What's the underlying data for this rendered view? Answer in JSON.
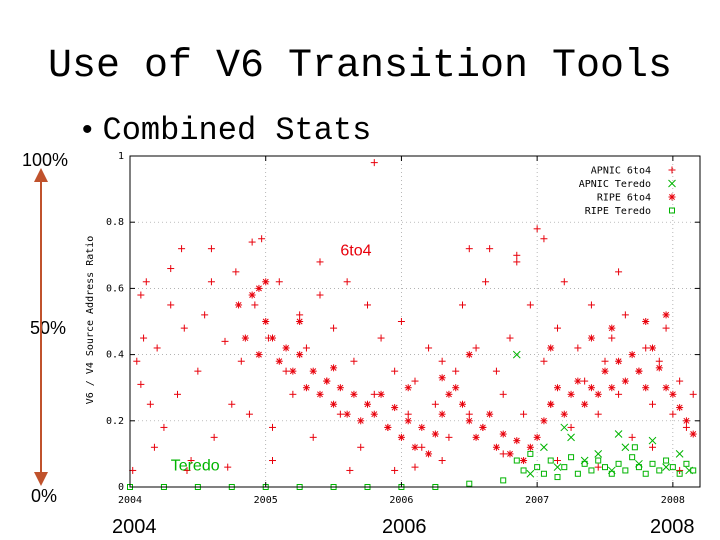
{
  "slide": {
    "title": "Use of V6 Transition Tools",
    "bullet": "Combined Stats",
    "side_labels": {
      "top": "100%",
      "mid": "50%",
      "bottom": "0%"
    },
    "year_labels": {
      "left": "2004",
      "mid": "2006",
      "right": "2008"
    }
  },
  "colors": {
    "red": "#e8000b",
    "green": "#00b400",
    "arrow": "#c0522c"
  },
  "chart_data": {
    "type": "scatter",
    "ylabel": "V6 / V4 Source Address Ratio",
    "xlabel": "",
    "xlim": [
      2004.0,
      2008.2
    ],
    "ylim": [
      0,
      1
    ],
    "xticks": [
      "2004",
      "2005",
      "2006",
      "2007",
      "2008"
    ],
    "yticks": [
      "0",
      "0.2",
      "0.4",
      "0.6",
      "0.8",
      "1"
    ],
    "grid": true,
    "legend_position": "top-right",
    "annotations": [
      {
        "text": "6to4",
        "x": 2005.55,
        "y": 0.7,
        "color": "#e8000b"
      },
      {
        "text": "Teredo",
        "x": 2004.3,
        "y": 0.05,
        "color": "#00b400"
      }
    ],
    "series": [
      {
        "name": "APNIC 6to4",
        "marker": "plus",
        "color": "#e8000b",
        "points": [
          [
            2004.02,
            0.05
          ],
          [
            2004.05,
            0.38
          ],
          [
            2004.08,
            0.31
          ],
          [
            2004.1,
            0.45
          ],
          [
            2004.12,
            0.62
          ],
          [
            2004.15,
            0.25
          ],
          [
            2004.18,
            0.12
          ],
          [
            2004.2,
            0.42
          ],
          [
            2004.25,
            0.18
          ],
          [
            2004.3,
            0.55
          ],
          [
            2004.35,
            0.28
          ],
          [
            2004.38,
            0.72
          ],
          [
            2004.4,
            0.48
          ],
          [
            2004.45,
            0.08
          ],
          [
            2004.5,
            0.35
          ],
          [
            2004.55,
            0.52
          ],
          [
            2004.6,
            0.62
          ],
          [
            2004.62,
            0.15
          ],
          [
            2004.7,
            0.44
          ],
          [
            2004.75,
            0.25
          ],
          [
            2004.78,
            0.65
          ],
          [
            2004.82,
            0.38
          ],
          [
            2004.88,
            0.22
          ],
          [
            2004.92,
            0.55
          ],
          [
            2004.97,
            0.75
          ],
          [
            2005.02,
            0.45
          ],
          [
            2005.05,
            0.18
          ],
          [
            2005.1,
            0.62
          ],
          [
            2005.15,
            0.35
          ],
          [
            2005.2,
            0.28
          ],
          [
            2005.25,
            0.52
          ],
          [
            2005.3,
            0.42
          ],
          [
            2005.35,
            0.15
          ],
          [
            2005.4,
            0.58
          ],
          [
            2005.45,
            0.32
          ],
          [
            2005.5,
            0.48
          ],
          [
            2005.55,
            0.22
          ],
          [
            2005.6,
            0.62
          ],
          [
            2005.65,
            0.38
          ],
          [
            2005.7,
            0.12
          ],
          [
            2005.75,
            0.55
          ],
          [
            2005.8,
            0.28
          ],
          [
            2005.85,
            0.45
          ],
          [
            2005.9,
            0.18
          ],
          [
            2005.95,
            0.35
          ],
          [
            2006.0,
            0.5
          ],
          [
            2006.05,
            0.22
          ],
          [
            2006.1,
            0.32
          ],
          [
            2006.15,
            0.12
          ],
          [
            2006.2,
            0.42
          ],
          [
            2006.25,
            0.25
          ],
          [
            2006.3,
            0.38
          ],
          [
            2006.35,
            0.15
          ],
          [
            2006.4,
            0.35
          ],
          [
            2006.45,
            0.55
          ],
          [
            2006.5,
            0.22
          ],
          [
            2006.55,
            0.42
          ],
          [
            2006.6,
            0.18
          ],
          [
            2006.62,
            0.62
          ],
          [
            2006.65,
            0.72
          ],
          [
            2006.7,
            0.35
          ],
          [
            2006.75,
            0.28
          ],
          [
            2006.8,
            0.45
          ],
          [
            2006.85,
            0.68
          ],
          [
            2006.9,
            0.22
          ],
          [
            2006.95,
            0.55
          ],
          [
            2007.0,
            0.78
          ],
          [
            2007.05,
            0.38
          ],
          [
            2007.1,
            0.25
          ],
          [
            2007.15,
            0.48
          ],
          [
            2007.2,
            0.62
          ],
          [
            2007.25,
            0.18
          ],
          [
            2007.3,
            0.42
          ],
          [
            2007.35,
            0.32
          ],
          [
            2007.4,
            0.55
          ],
          [
            2007.45,
            0.22
          ],
          [
            2007.5,
            0.38
          ],
          [
            2007.55,
            0.45
          ],
          [
            2007.6,
            0.28
          ],
          [
            2007.65,
            0.52
          ],
          [
            2007.7,
            0.15
          ],
          [
            2007.75,
            0.35
          ],
          [
            2007.8,
            0.42
          ],
          [
            2007.85,
            0.25
          ],
          [
            2007.9,
            0.38
          ],
          [
            2007.95,
            0.48
          ],
          [
            2008.0,
            0.22
          ],
          [
            2008.05,
            0.32
          ],
          [
            2008.1,
            0.18
          ],
          [
            2008.15,
            0.28
          ],
          [
            2005.8,
            0.98
          ],
          [
            2004.6,
            0.72
          ],
          [
            2004.9,
            0.74
          ],
          [
            2005.4,
            0.68
          ],
          [
            2006.5,
            0.72
          ],
          [
            2006.85,
            0.7
          ],
          [
            2007.05,
            0.75
          ],
          [
            2007.6,
            0.65
          ],
          [
            2004.08,
            0.58
          ],
          [
            2004.3,
            0.66
          ],
          [
            2005.05,
            0.08
          ],
          [
            2005.95,
            0.05
          ],
          [
            2006.3,
            0.08
          ],
          [
            2007.15,
            0.08
          ],
          [
            2004.42,
            0.05
          ],
          [
            2004.72,
            0.06
          ],
          [
            2005.62,
            0.05
          ],
          [
            2006.75,
            0.1
          ],
          [
            2007.45,
            0.06
          ],
          [
            2008.05,
            0.05
          ],
          [
            2007.85,
            0.12
          ],
          [
            2006.1,
            0.06
          ]
        ]
      },
      {
        "name": "APNIC Teredo",
        "marker": "cross",
        "color": "#00b400",
        "points": [
          [
            2006.85,
            0.4
          ],
          [
            2006.95,
            0.04
          ],
          [
            2007.05,
            0.12
          ],
          [
            2007.15,
            0.06
          ],
          [
            2007.25,
            0.15
          ],
          [
            2007.35,
            0.08
          ],
          [
            2007.45,
            0.1
          ],
          [
            2007.55,
            0.05
          ],
          [
            2007.65,
            0.12
          ],
          [
            2007.75,
            0.07
          ],
          [
            2007.85,
            0.14
          ],
          [
            2007.95,
            0.06
          ],
          [
            2008.05,
            0.1
          ],
          [
            2008.12,
            0.05
          ],
          [
            2007.2,
            0.18
          ],
          [
            2007.6,
            0.16
          ]
        ]
      },
      {
        "name": "RIPE 6to4",
        "marker": "star",
        "color": "#e8000b",
        "points": [
          [
            2004.8,
            0.55
          ],
          [
            2004.9,
            0.58
          ],
          [
            2005.0,
            0.5
          ],
          [
            2004.85,
            0.45
          ],
          [
            2004.95,
            0.4
          ],
          [
            2005.05,
            0.45
          ],
          [
            2005.1,
            0.38
          ],
          [
            2005.15,
            0.42
          ],
          [
            2005.2,
            0.35
          ],
          [
            2005.25,
            0.4
          ],
          [
            2005.3,
            0.3
          ],
          [
            2005.35,
            0.35
          ],
          [
            2005.4,
            0.28
          ],
          [
            2005.45,
            0.32
          ],
          [
            2005.5,
            0.25
          ],
          [
            2005.55,
            0.3
          ],
          [
            2005.6,
            0.22
          ],
          [
            2005.65,
            0.28
          ],
          [
            2005.7,
            0.2
          ],
          [
            2005.75,
            0.25
          ],
          [
            2005.8,
            0.22
          ],
          [
            2005.85,
            0.28
          ],
          [
            2005.9,
            0.18
          ],
          [
            2005.95,
            0.24
          ],
          [
            2006.0,
            0.15
          ],
          [
            2006.05,
            0.2
          ],
          [
            2006.1,
            0.12
          ],
          [
            2006.15,
            0.18
          ],
          [
            2006.2,
            0.1
          ],
          [
            2006.25,
            0.16
          ],
          [
            2006.3,
            0.22
          ],
          [
            2006.35,
            0.28
          ],
          [
            2006.4,
            0.3
          ],
          [
            2006.45,
            0.25
          ],
          [
            2006.5,
            0.2
          ],
          [
            2006.55,
            0.15
          ],
          [
            2006.6,
            0.18
          ],
          [
            2006.65,
            0.22
          ],
          [
            2006.7,
            0.12
          ],
          [
            2006.75,
            0.16
          ],
          [
            2006.8,
            0.1
          ],
          [
            2006.85,
            0.14
          ],
          [
            2006.9,
            0.08
          ],
          [
            2006.95,
            0.12
          ],
          [
            2007.0,
            0.15
          ],
          [
            2007.05,
            0.2
          ],
          [
            2007.1,
            0.25
          ],
          [
            2007.15,
            0.3
          ],
          [
            2007.2,
            0.22
          ],
          [
            2007.25,
            0.28
          ],
          [
            2007.3,
            0.32
          ],
          [
            2007.35,
            0.25
          ],
          [
            2007.4,
            0.3
          ],
          [
            2007.45,
            0.28
          ],
          [
            2007.5,
            0.35
          ],
          [
            2007.55,
            0.3
          ],
          [
            2007.6,
            0.38
          ],
          [
            2007.65,
            0.32
          ],
          [
            2007.7,
            0.4
          ],
          [
            2007.75,
            0.35
          ],
          [
            2007.8,
            0.3
          ],
          [
            2007.85,
            0.42
          ],
          [
            2007.9,
            0.36
          ],
          [
            2007.95,
            0.3
          ],
          [
            2008.0,
            0.28
          ],
          [
            2008.05,
            0.24
          ],
          [
            2008.1,
            0.2
          ],
          [
            2008.15,
            0.16
          ],
          [
            2005.0,
            0.62
          ],
          [
            2005.5,
            0.36
          ],
          [
            2006.05,
            0.3
          ],
          [
            2007.4,
            0.45
          ],
          [
            2007.8,
            0.5
          ],
          [
            2007.95,
            0.52
          ],
          [
            2006.5,
            0.4
          ],
          [
            2005.25,
            0.5
          ],
          [
            2004.95,
            0.6
          ],
          [
            2006.3,
            0.33
          ],
          [
            2007.1,
            0.42
          ],
          [
            2007.55,
            0.48
          ]
        ]
      },
      {
        "name": "RIPE Teredo",
        "marker": "square",
        "color": "#00b400",
        "points": [
          [
            2004.0,
            0.0
          ],
          [
            2004.25,
            0.0
          ],
          [
            2004.5,
            0.0
          ],
          [
            2004.75,
            0.0
          ],
          [
            2005.0,
            0.0
          ],
          [
            2005.25,
            0.0
          ],
          [
            2005.5,
            0.0
          ],
          [
            2005.75,
            0.0
          ],
          [
            2006.0,
            0.0
          ],
          [
            2006.25,
            0.0
          ],
          [
            2006.5,
            0.01
          ],
          [
            2006.75,
            0.02
          ],
          [
            2006.85,
            0.08
          ],
          [
            2006.9,
            0.05
          ],
          [
            2006.95,
            0.1
          ],
          [
            2007.0,
            0.06
          ],
          [
            2007.05,
            0.04
          ],
          [
            2007.1,
            0.08
          ],
          [
            2007.15,
            0.03
          ],
          [
            2007.2,
            0.06
          ],
          [
            2007.25,
            0.09
          ],
          [
            2007.3,
            0.04
          ],
          [
            2007.35,
            0.07
          ],
          [
            2007.4,
            0.05
          ],
          [
            2007.45,
            0.08
          ],
          [
            2007.5,
            0.06
          ],
          [
            2007.55,
            0.04
          ],
          [
            2007.6,
            0.07
          ],
          [
            2007.65,
            0.05
          ],
          [
            2007.7,
            0.09
          ],
          [
            2007.75,
            0.06
          ],
          [
            2007.8,
            0.04
          ],
          [
            2007.85,
            0.07
          ],
          [
            2007.9,
            0.05
          ],
          [
            2007.95,
            0.08
          ],
          [
            2008.0,
            0.06
          ],
          [
            2008.05,
            0.04
          ],
          [
            2008.1,
            0.07
          ],
          [
            2008.15,
            0.05
          ],
          [
            2007.72,
            0.12
          ]
        ]
      }
    ]
  }
}
